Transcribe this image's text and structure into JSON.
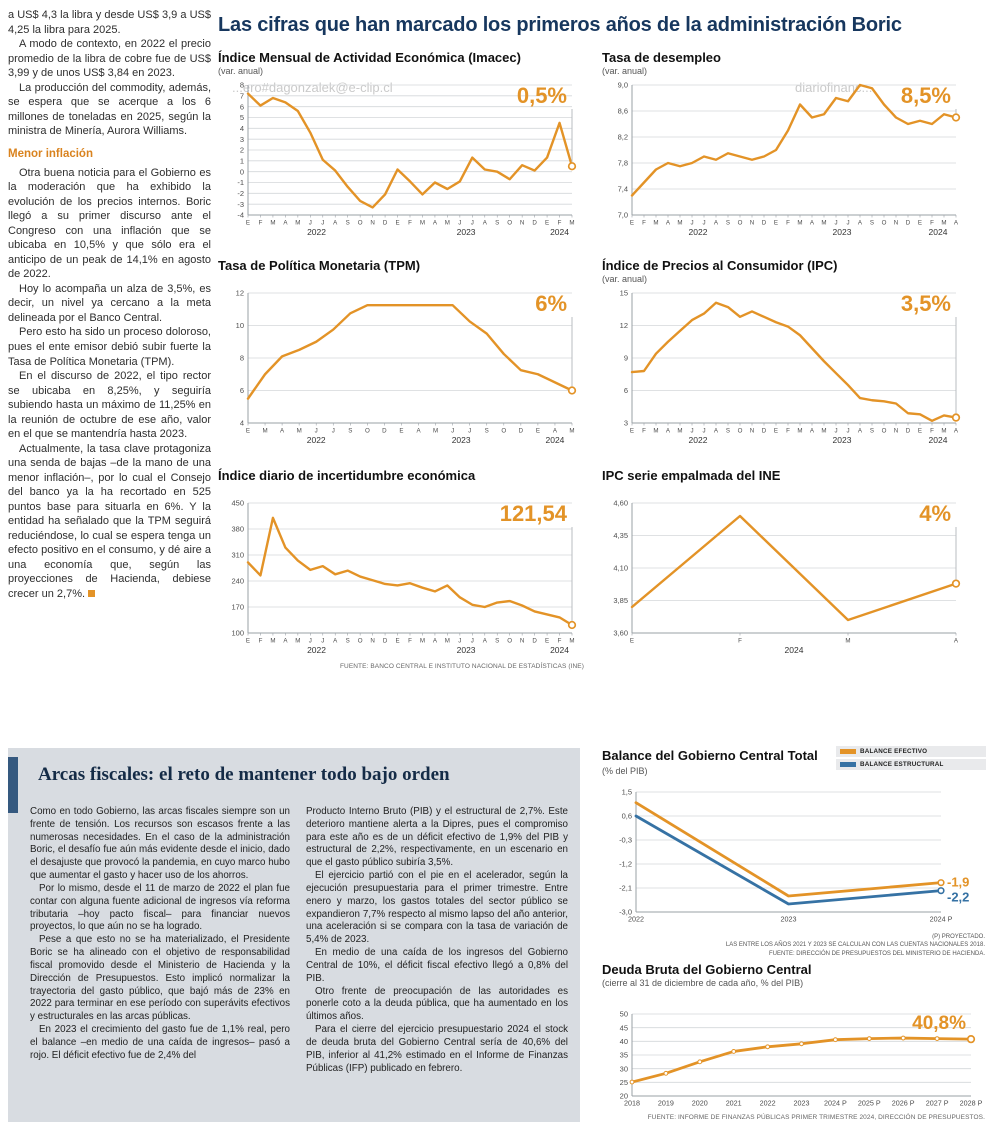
{
  "main_title": "Las cifras que han marcado los primeros años de la administración Boric",
  "watermarks": [
    "...ero#dagonzalek@e-clip.cl",
    "diariofinanc...",
    "...ero#dagonzalek@e-clip.cl"
  ],
  "left_article": {
    "paragraphs": [
      "a US$ 4,3 la libra y desde US$ 3,9 a US$ 4,25 la libra para 2025.",
      "A modo de contexto, en 2022 el precio promedio de la libra de cobre fue de US$ 3,99 y de unos US$ 3,84 en 2023.",
      "La producción del commodity, además, se espera que se acerque a los 6 millones de toneladas en 2025, según la ministra de Minería, Aurora Williams."
    ],
    "subhead": "Menor inflación",
    "paragraphs2": [
      "Otra buena noticia para el Gobierno es la moderación que ha exhibido la evolución de los precios internos. Boric llegó a su primer discurso ante el Congreso con una inflación que se ubicaba en 10,5% y que sólo era el anticipo de un peak de 14,1% en agosto de 2022.",
      "Hoy lo acompaña un alza de 3,5%, es decir, un nivel ya cercano a la meta delineada por el Banco Central.",
      "Pero esto ha sido un proceso doloroso, pues el ente emisor debió subir fuerte la Tasa de Política Monetaria (TPM).",
      "En el discurso de 2022, el tipo rector se ubicaba en 8,25%, y seguiría subiendo hasta un máximo de 11,25% en la reunión de octubre de ese año, valor en el que se mantendría hasta 2023.",
      "Actualmente, la tasa clave protagoniza una senda de bajas –de la mano de una menor inflación–, por lo cual el Consejo del banco ya la ha recortado en 525 puntos base para situarla en 6%. Y la entidad ha señalado que la TPM seguirá reduciéndose, lo cual se espera tenga un efecto positivo en el consumo, y dé aire a una economía que, según las proyecciones de Hacienda, debiese crecer un 2,7%."
    ]
  },
  "fiscal": {
    "title": "Arcas fiscales: el reto de mantener todo bajo orden",
    "col1": [
      "Como en todo Gobierno, las arcas fiscales siempre son un frente de tensión. Los recursos son escasos frente a las numerosas necesidades. En el caso de la administración Boric, el desafío fue aún más evidente desde el inicio, dado el desajuste que provocó la pandemia, en cuyo marco hubo que aumentar el gasto y hacer uso de los ahorros.",
      "Por lo mismo, desde el 11 de marzo de 2022 el plan fue contar con alguna fuente adicional de ingresos vía reforma tributaria –hoy pacto fiscal– para financiar nuevos proyectos, lo que aún no se ha logrado.",
      "Pese a que esto no se ha materializado, el Presidente Boric se ha alineado con el objetivo de responsabilidad fiscal promovido desde el Ministerio de Hacienda y la Dirección de Presupuestos. Esto implicó normalizar la trayectoria del gasto público, que bajó más de 23% en 2022 para terminar en ese período con superávits efectivos y estructurales en las arcas públicas.",
      "En 2023 el crecimiento del gasto fue de 1,1% real, pero el balance –en medio de una caída de ingresos– pasó a rojo. El déficit efectivo fue de 2,4% del"
    ],
    "col2": [
      "Producto Interno Bruto (PIB) y el estructural de 2,7%. Este deterioro mantiene alerta a la Dipres, pues el compromiso para este año es de un déficit efectivo de 1,9% del PIB y estructural de 2,2%, respectivamente, en un escenario en que el gasto público subiría 3,5%.",
      "El ejercicio partió con el pie en el acelerador, según la ejecución presupuestaria para el primer trimestre. Entre enero y marzo, los gastos totales del sector público se expandieron 7,7% respecto al mismo lapso del año anterior, una aceleración si se compara con la tasa de variación de 5,4% de 2023.",
      "En medio de una caída de los ingresos del Gobierno Central de 10%, el déficit fiscal efectivo llegó a 0,8% del PIB.",
      "Otro frente de preocupación de las autoridades es ponerle coto a la deuda pública, que ha aumentado en los últimos años.",
      "Para el cierre del ejercicio presupuestario 2024 el stock de deuda bruta del Gobierno Central sería de 40,6% del PIB, inferior al 41,2% estimado en el Informe de Finanzas Públicas (IFP) publicado en febrero."
    ]
  },
  "sources": {
    "top": "FUENTE: BANCO CENTRAL E INSTITUTO NACIONAL DE ESTADÍSTICAS (INE)",
    "balance_notes": [
      "(P) PROYECTADO.",
      "LAS ENTRE LOS AÑOS 2021 Y 2023 SE CALCULAN  CON LAS CUENTAS NACIONALES 2018.",
      "FUENTE: DIRECCIÓN DE PRESUPUESTOS DEL MINISTERIO DE HACIENDA."
    ],
    "debt": "FUENTE: INFORME DE FINANZAS PÚBLICAS PRIMER TRIMESTRE 2024, DIRECCIÓN DE PRESUPUESTOS."
  },
  "colors": {
    "accent_orange": "#E39327",
    "accent_blue": "#3672A4",
    "navy": "#17375E",
    "gray_box": "#D8DCE1"
  },
  "chart_data": [
    {
      "type": "line",
      "title": "Índice Mensual de Actividad Económica (Imacec)",
      "subtitle": "(var. anual)",
      "ylim": [
        -4,
        8
      ],
      "yticks": [
        "8",
        "7",
        "6",
        "5",
        "4",
        "3",
        "2",
        "1",
        "0",
        "-1",
        "-2",
        "-3",
        "-4"
      ],
      "x_labels": [
        "E",
        "F",
        "M",
        "A",
        "M",
        "J",
        "J",
        "A",
        "S",
        "O",
        "N",
        "D",
        "E",
        "F",
        "M",
        "A",
        "M",
        "J",
        "J",
        "A",
        "S",
        "O",
        "N",
        "D",
        "E",
        "F",
        "M"
      ],
      "year_groups": [
        {
          "label": "2022",
          "count": 12
        },
        {
          "label": "2023",
          "count": 12
        },
        {
          "label": "2024",
          "count": 3
        }
      ],
      "end_label_style": "big-top",
      "series": [
        {
          "name": "Imacec var. anual",
          "color": "#E39327",
          "end_label": "0,5%",
          "values": [
            7.2,
            6.1,
            6.8,
            6.4,
            5.6,
            3.6,
            1.1,
            0.1,
            -1.4,
            -2.7,
            -3.3,
            -2.1,
            0.2,
            -0.9,
            -2.1,
            -1.0,
            -1.6,
            -0.9,
            1.3,
            0.2,
            0.0,
            -0.7,
            0.6,
            0.1,
            1.3,
            4.5,
            0.5
          ]
        }
      ]
    },
    {
      "type": "line",
      "title": "Tasa de desempleo",
      "subtitle": "(var. anual)",
      "ylim": [
        7.0,
        9.0
      ],
      "yticks": [
        "9,0",
        "8,6",
        "8,2",
        "7,8",
        "7,4",
        "7,0"
      ],
      "x_labels": [
        "E",
        "F",
        "M",
        "A",
        "M",
        "J",
        "J",
        "A",
        "S",
        "O",
        "N",
        "D",
        "E",
        "F",
        "M",
        "A",
        "M",
        "J",
        "J",
        "A",
        "S",
        "O",
        "N",
        "D",
        "E",
        "F",
        "M",
        "A"
      ],
      "year_groups": [
        {
          "label": "2022",
          "count": 12
        },
        {
          "label": "2023",
          "count": 12
        },
        {
          "label": "2024",
          "count": 4
        }
      ],
      "end_label_style": "big-top",
      "series": [
        {
          "name": "Tasa de desempleo",
          "color": "#E39327",
          "end_label": "8,5%",
          "values": [
            7.3,
            7.5,
            7.7,
            7.8,
            7.75,
            7.8,
            7.9,
            7.85,
            7.95,
            7.9,
            7.85,
            7.9,
            8.0,
            8.3,
            8.7,
            8.5,
            8.55,
            8.8,
            8.75,
            9.0,
            8.95,
            8.7,
            8.5,
            8.4,
            8.45,
            8.4,
            8.55,
            8.5
          ]
        }
      ]
    },
    {
      "type": "line",
      "title": "Tasa de Política Monetaria (TPM)",
      "subtitle": "",
      "ylim": [
        4,
        12
      ],
      "yticks": [
        "12",
        "10",
        "8",
        "6",
        "4"
      ],
      "x_labels": [
        "E",
        "M",
        "A",
        "M",
        "J",
        "J",
        "S",
        "O",
        "D",
        "E",
        "A",
        "M",
        "J",
        "J",
        "S",
        "O",
        "D",
        "E",
        "A",
        "M"
      ],
      "year_groups": [
        {
          "label": "2022",
          "count": 9
        },
        {
          "label": "2023",
          "count": 8
        },
        {
          "label": "2024",
          "count": 3
        }
      ],
      "end_label_style": "big-top",
      "series": [
        {
          "name": "TPM",
          "color": "#E39327",
          "end_label": "6%",
          "values": [
            5.5,
            7.0,
            8.1,
            8.5,
            9.0,
            9.75,
            10.75,
            11.25,
            11.25,
            11.25,
            11.25,
            11.25,
            11.25,
            10.25,
            9.5,
            8.25,
            7.25,
            7.0,
            6.5,
            6.0
          ]
        }
      ]
    },
    {
      "type": "line",
      "title": "Índice de Precios al Consumidor (IPC)",
      "subtitle": "(var. anual)",
      "ylim": [
        3,
        15
      ],
      "yticks": [
        "15",
        "12",
        "9",
        "6",
        "3"
      ],
      "x_labels": [
        "E",
        "F",
        "M",
        "A",
        "M",
        "J",
        "J",
        "A",
        "S",
        "O",
        "N",
        "D",
        "E",
        "F",
        "M",
        "A",
        "M",
        "J",
        "J",
        "A",
        "S",
        "O",
        "N",
        "D",
        "E",
        "F",
        "M",
        "A"
      ],
      "year_groups": [
        {
          "label": "2022",
          "count": 12
        },
        {
          "label": "2023",
          "count": 12
        },
        {
          "label": "2024",
          "count": 4
        }
      ],
      "end_label_style": "big-top",
      "series": [
        {
          "name": "IPC var. anual",
          "color": "#E39327",
          "end_label": "3,5%",
          "values": [
            7.7,
            7.8,
            9.4,
            10.5,
            11.5,
            12.5,
            13.1,
            14.1,
            13.7,
            12.8,
            13.3,
            12.8,
            12.3,
            11.9,
            11.1,
            9.9,
            8.7,
            7.6,
            6.5,
            5.3,
            5.1,
            5.0,
            4.8,
            3.9,
            3.8,
            3.2,
            3.7,
            3.5
          ]
        }
      ]
    },
    {
      "type": "line",
      "title": "Índice diario de incertidumbre económica",
      "subtitle": "",
      "ylim": [
        100,
        450
      ],
      "yticks": [
        "450",
        "380",
        "310",
        "240",
        "170",
        "100"
      ],
      "x_labels": [
        "E",
        "F",
        "M",
        "A",
        "M",
        "J",
        "J",
        "A",
        "S",
        "O",
        "N",
        "D",
        "E",
        "F",
        "M",
        "A",
        "M",
        "J",
        "J",
        "A",
        "S",
        "O",
        "N",
        "D",
        "E",
        "F",
        "M"
      ],
      "year_groups": [
        {
          "label": "2022",
          "count": 12
        },
        {
          "label": "2023",
          "count": 12
        },
        {
          "label": "2024",
          "count": 3
        }
      ],
      "end_label_style": "big-top",
      "series": [
        {
          "name": "Incertidumbre económica",
          "color": "#E39327",
          "end_label": "121,54",
          "values": [
            290,
            255,
            410,
            330,
            295,
            270,
            280,
            258,
            268,
            252,
            242,
            232,
            228,
            234,
            222,
            212,
            228,
            196,
            176,
            170,
            182,
            186,
            174,
            158,
            150,
            142,
            121.54
          ]
        }
      ]
    },
    {
      "type": "line",
      "title": "IPC serie empalmada del INE",
      "subtitle": "",
      "ylim": [
        3.6,
        4.6
      ],
      "yticks": [
        "4,60",
        "4,35",
        "4,10",
        "3,85",
        "3,60"
      ],
      "x_labels": [
        "E",
        "F",
        "M",
        "A"
      ],
      "year_groups": [
        {
          "label": "2024",
          "count": 4
        }
      ],
      "end_label_style": "big-top",
      "series": [
        {
          "name": "IPC serie empalmada",
          "color": "#E39327",
          "end_label": "4%",
          "values": [
            3.8,
            4.5,
            3.7,
            3.98
          ]
        }
      ]
    },
    {
      "type": "line",
      "title": "Balance del Gobierno Central Total",
      "subtitle": "(% del PIB)",
      "ylim": [
        -3.0,
        1.5
      ],
      "yticks": [
        "1,5",
        "0,6",
        "-0,3",
        "-1,2",
        "-2,1",
        "-3,0"
      ],
      "x_labels": [
        "2022",
        "2023",
        "2024 P"
      ],
      "end_label_style": "side",
      "legend": [
        {
          "label": "BALANCE EFECTIVO",
          "color": "#E39327"
        },
        {
          "label": "BALANCE ESTRUCTURAL",
          "color": "#3672A4"
        }
      ],
      "series": [
        {
          "name": "Balance efectivo",
          "color": "#E39327",
          "end_label": "-1,9",
          "values": [
            1.1,
            -2.4,
            -1.9
          ]
        },
        {
          "name": "Balance estructural",
          "color": "#3672A4",
          "end_label": "-2,2",
          "values": [
            0.6,
            -2.7,
            -2.2
          ]
        }
      ]
    },
    {
      "type": "line",
      "title": "Deuda Bruta del Gobierno Central",
      "subtitle": "(cierre al 31 de diciembre de cada año, % del PIB)",
      "ylim": [
        20,
        50
      ],
      "yticks": [
        "50",
        "45",
        "40",
        "35",
        "30",
        "25",
        "20"
      ],
      "x_labels": [
        "2018",
        "2019",
        "2020",
        "2021",
        "2022",
        "2023",
        "2024 P",
        "2025 P",
        "2026 P",
        "2027 P",
        "2028 P"
      ],
      "end_label_style": "big-top",
      "markers": true,
      "series": [
        {
          "name": "Deuda bruta",
          "color": "#E39327",
          "end_label": "40,8%",
          "values": [
            25.1,
            28.3,
            32.5,
            36.3,
            38.0,
            39.1,
            40.6,
            41.0,
            41.2,
            41.0,
            40.8
          ]
        }
      ]
    }
  ]
}
